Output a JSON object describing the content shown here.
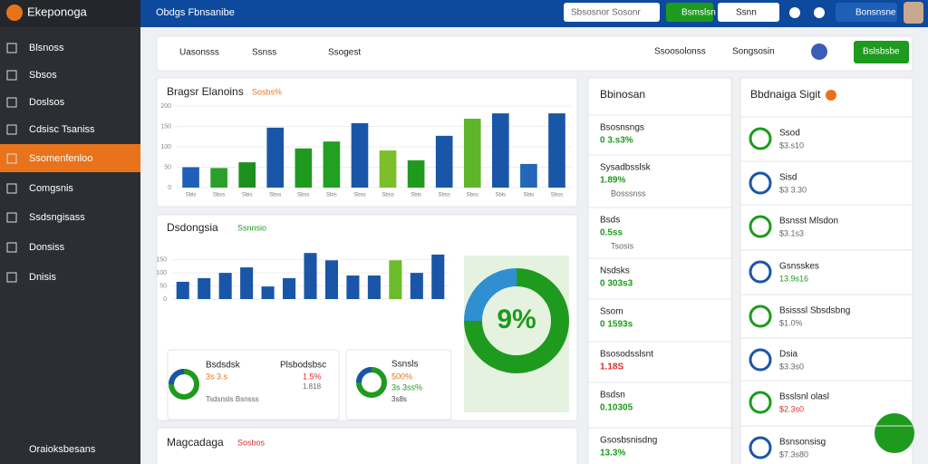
{
  "app": {
    "name": "Ekeponoga"
  },
  "topbar": {
    "title": "Obdgs Fbnsanibe",
    "search": "Sbsosnor Sosonr",
    "buttons": [
      "Bsmslsn",
      "Ssnn",
      "Bonsnsne"
    ]
  },
  "sidebar": {
    "items": [
      "Blsnoss",
      "Sbsos",
      "Doslsos",
      "Cdsisc Tsaniss",
      "Ssomenfenloo",
      "Comgsnis",
      "Ssdsngisass",
      "Donsiss",
      "Dnisis"
    ],
    "footer": "Oraioksbesans"
  },
  "toolbar": {
    "tabs": [
      "Uasonsss",
      "Ssnss",
      "Ssogest"
    ],
    "filters": [
      "Ssoosolonss",
      "Songsosin"
    ],
    "button": "Bslsbsbe"
  },
  "chart_data": [
    {
      "type": "bar",
      "title": "Bragsr Elanoins",
      "badge": "Sosbs%",
      "categories": [
        "Sbis",
        "Sbss",
        "Sbis",
        "Sbss",
        "Sbss",
        "Sbis",
        "Sbss",
        "Sbss",
        "Sbis",
        "Sbss",
        "Sbss",
        "Sbis",
        "Sbis",
        "Sbss"
      ],
      "values": [
        50,
        48,
        62,
        147,
        96,
        113,
        158,
        91,
        67,
        127,
        169,
        182,
        58,
        182
      ],
      "colors": [
        "#1f5fb5",
        "#2aa02a",
        "#1f8f1f",
        "#1a56a8",
        "#1f9a1f",
        "#21a021",
        "#1a56a8",
        "#7cbf2a",
        "#1f9a1f",
        "#1a56a8",
        "#5fb52a",
        "#1a56a8",
        "#2466b8",
        "#1a56a8"
      ],
      "ylim": [
        0,
        200
      ],
      "yticks": [
        0,
        50,
        100,
        150,
        200
      ]
    },
    {
      "type": "bar",
      "title": "Dsdongsia",
      "badge": "Ssnnsio",
      "values": [
        66,
        80,
        100,
        121,
        48,
        80,
        176,
        148,
        90,
        90,
        148,
        100,
        170
      ],
      "colors": [
        "#1a56a8",
        "#1a56a8",
        "#1a56a8",
        "#1a56a8",
        "#1a56a8",
        "#1a56a8",
        "#1a56a8",
        "#1a56a8",
        "#1a56a8",
        "#1a56a8",
        "#6cbb2a",
        "#1a56a8",
        "#1a56a8"
      ],
      "ylim": [
        0,
        180
      ],
      "yticks": [
        0,
        50,
        100,
        150
      ]
    },
    {
      "type": "pie",
      "center_label": "9%",
      "values": [
        75,
        25
      ],
      "colors": [
        "#1e9a1e",
        "#2f8fd0"
      ]
    }
  ],
  "mini_cards": [
    {
      "title": "Bsdsdsk",
      "value": "3s 3.s",
      "sub": "Tsdsnsls Bsnsss",
      "title2": "Plsbodsbsc",
      "value2": "1.5%",
      "sub2": "1.818"
    },
    {
      "title": "Ssnsls",
      "value": "500%",
      "sub": "3s 3ss%",
      "sub2": "3s8s"
    }
  ],
  "bottom_card": {
    "title": "Magcadaga",
    "badge": "Sosbos"
  },
  "list_mid": {
    "title": "Bbinosan",
    "items": [
      {
        "label": "Bsosnsngs",
        "value": "0 3.s3%",
        "color": "#1e9a1e"
      },
      {
        "label": "Sysadbsslsk",
        "value": "1.89%",
        "note": "Bosssnss",
        "color": "#1e9a1e"
      },
      {
        "label": "Bsds",
        "value": "0.5ss",
        "note": "Tsosis",
        "color": "#1e9a1e"
      },
      {
        "label": "Nsdsks",
        "value": "0 303s3",
        "color": "#1e9a1e"
      },
      {
        "label": "Ssom",
        "value": "0 1593s",
        "color": "#1e9a1e"
      },
      {
        "label": "Bsosodsslsnt",
        "value": "1.18S",
        "color": "#d32f2f"
      },
      {
        "label": "Bsdsn",
        "value": "0.10305",
        "color": "#1e9a1e"
      },
      {
        "label": "Gsosbsnisdng",
        "value": "13.3%",
        "color": "#1e9a1e"
      }
    ]
  },
  "list_right": {
    "title": "Bbdnaiga Sigit",
    "items": [
      {
        "name": "Ssod",
        "value": "$3.s10"
      },
      {
        "name": "Sisd",
        "value": "$3 3.30"
      },
      {
        "name": "Bsnsst Mlsdon",
        "value": "$3.1s3"
      },
      {
        "name": "Gsnsskes",
        "value": "13.9s16",
        "green": true
      },
      {
        "name": "Bsisssl Sbsdsbng",
        "value": "$1.0%"
      },
      {
        "name": "Dsia",
        "value": "$3.3s0"
      },
      {
        "name": "Bsslsnl olasl",
        "value": "$2.3s0",
        "red": true
      },
      {
        "name": "Bsnsonsisg",
        "value": "$7.3s80"
      }
    ]
  }
}
